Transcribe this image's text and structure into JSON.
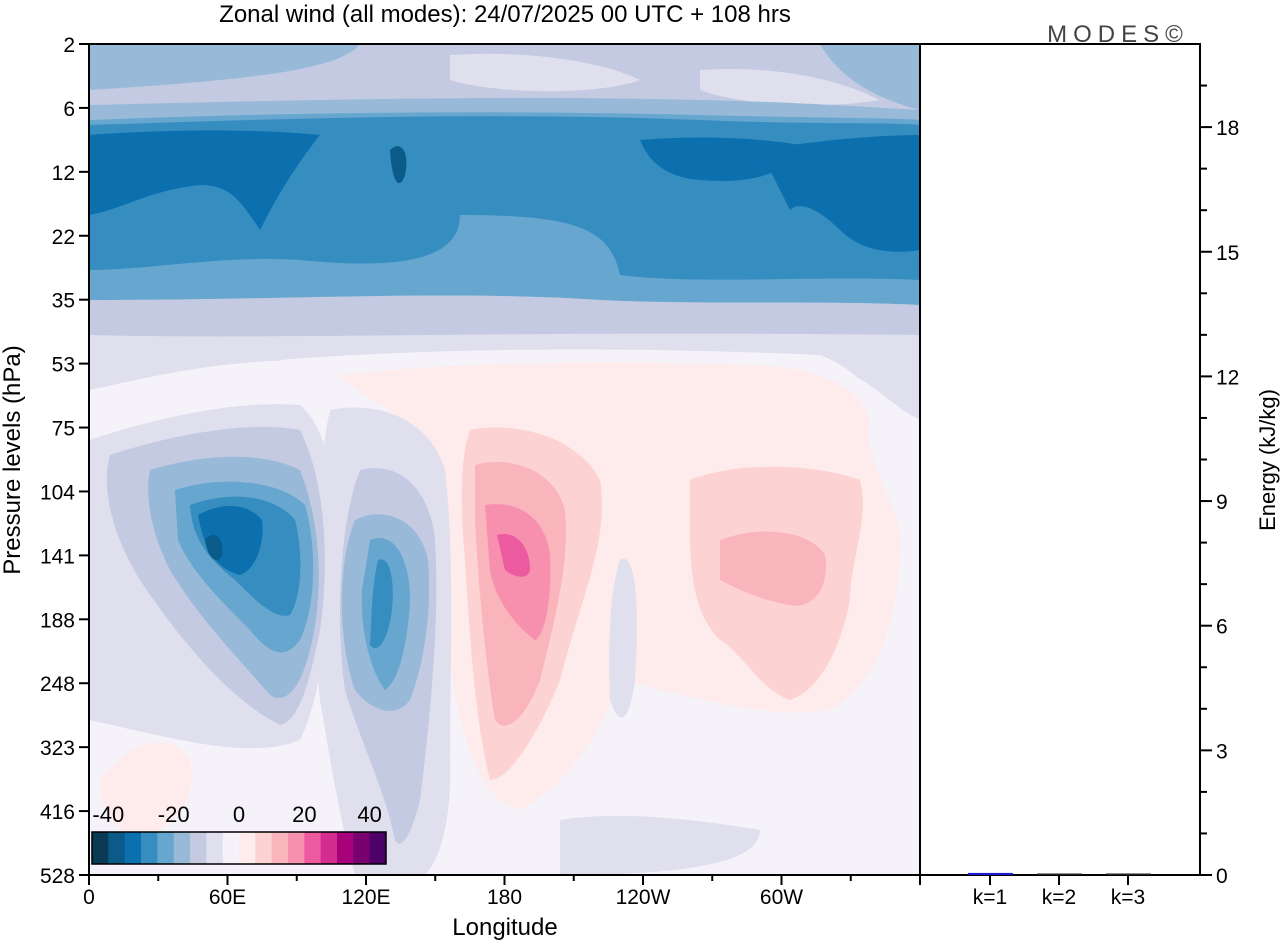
{
  "chart_data": [
    {
      "type": "heatmap",
      "title": "Zonal wind (all modes):  24/07/2025  00 UTC  + 108 hrs",
      "xlabel": "Longitude",
      "ylabel": "Pressure levels (hPa)",
      "x_ticks": [
        "0",
        "60E",
        "120E",
        "180",
        "120W",
        "60W"
      ],
      "y_ticks": [
        "2",
        "6",
        "12",
        "22",
        "35",
        "53",
        "75",
        "104",
        "141",
        "188",
        "248",
        "323",
        "416",
        "528"
      ],
      "colorbar": {
        "tick_labels": [
          "-40",
          "-20",
          "0",
          "20",
          "40"
        ],
        "range": [
          -45,
          45
        ],
        "step": 5,
        "colors": [
          "#0b3a55",
          "#0a5a8a",
          "#0c6fae",
          "#368dc0",
          "#67a7cf",
          "#99b9d8",
          "#c3cae2",
          "#dfdfee",
          "#f5f3f9",
          "#fdeceb",
          "#fcd2d2",
          "#f9b4bc",
          "#f78fae",
          "#ec5a9f",
          "#d42c8f",
          "#a8017c",
          "#78006f",
          "#4d0066"
        ]
      },
      "features": [
        {
          "region": "stratosphere 6-35 hPa, all longitudes",
          "approx_value": -25
        },
        {
          "region": "60E, 104-188 hPa",
          "approx_value": -35
        },
        {
          "region": "125E, 141-248 hPa",
          "approx_value": -25
        },
        {
          "region": "180, 104-188 hPa",
          "approx_value": 20
        },
        {
          "region": "70W, 141 hPa",
          "approx_value": 12
        }
      ]
    },
    {
      "type": "bar",
      "categories": [
        "k=1",
        "k=2",
        "k=3"
      ],
      "values": [
        0.05,
        0.02,
        0.01
      ],
      "ylabel": "Energy (kJ/kg)",
      "ylim": [
        0,
        20
      ],
      "y_ticks": [
        "0",
        "3",
        "6",
        "9",
        "12",
        "15",
        "18"
      ],
      "bar_colors": [
        "#1a1adc",
        "#222222",
        "#222222"
      ]
    }
  ],
  "logo": "MODES©"
}
